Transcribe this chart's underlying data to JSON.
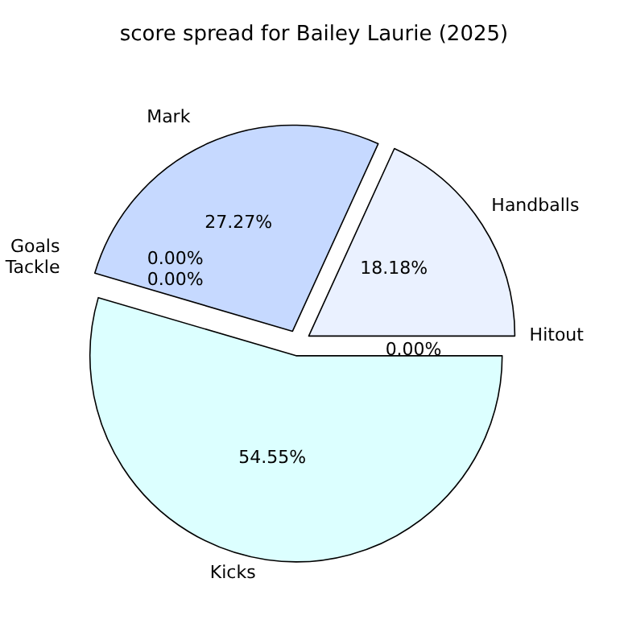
{
  "chart_data": {
    "type": "pie",
    "title": "score spread for Bailey Laurie (2025)",
    "categories": [
      "Handballs",
      "Mark",
      "Tackle",
      "Goals",
      "Kicks",
      "Hitout"
    ],
    "values": [
      18.18,
      27.27,
      0,
      0,
      54.55,
      0
    ],
    "colors": [
      "#eaf1ff",
      "#c6d9ff",
      "#ffe4d6",
      "#e4ffd6",
      "#dcffff",
      "#fff0f0"
    ],
    "value_labels": [
      "18.18%",
      "27.27%",
      "0.00%",
      "0.00%",
      "54.55%",
      "0.00%"
    ]
  }
}
